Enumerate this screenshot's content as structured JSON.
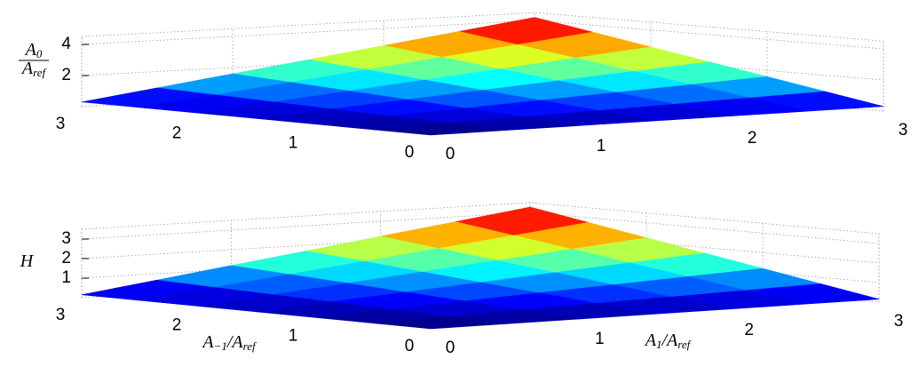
{
  "chart_data": [
    {
      "type": "surface",
      "zlabel": {
        "num": [
          {
            "t": "A"
          },
          {
            "t": "0",
            "sub": true
          }
        ],
        "den": [
          {
            "t": "A"
          },
          {
            "t": "ref",
            "sub": true
          }
        ]
      },
      "x": [
        0,
        0.5,
        1,
        1.5,
        2,
        2.5,
        3
      ],
      "y": [
        0,
        0.5,
        1,
        1.5,
        2,
        2.5,
        3
      ],
      "z": [
        [
          0,
          0.05,
          0.1,
          0.15,
          0.2,
          0.25,
          0.3
        ],
        [
          0.05,
          0.2,
          0.35,
          0.5,
          0.65,
          0.8,
          0.95
        ],
        [
          0.1,
          0.35,
          0.6,
          0.85,
          1.1,
          1.35,
          1.6
        ],
        [
          0.15,
          0.5,
          0.85,
          1.2,
          1.55,
          1.9,
          2.25
        ],
        [
          0.2,
          0.65,
          1.1,
          1.55,
          2.0,
          2.45,
          2.9
        ],
        [
          0.25,
          0.8,
          1.35,
          1.9,
          2.45,
          3.0,
          3.55
        ],
        [
          0.3,
          0.95,
          1.6,
          2.25,
          2.9,
          3.55,
          4.2
        ]
      ],
      "xlim": [
        0,
        3
      ],
      "ylim": [
        0,
        3
      ],
      "zlim": [
        0,
        4.5
      ],
      "xticks": [
        0,
        1,
        2,
        3
      ],
      "yticks": [
        0,
        1,
        2,
        3
      ],
      "zticks": [
        2,
        4
      ],
      "grid": true,
      "colormap": "jet"
    },
    {
      "type": "surface",
      "zlabel": {
        "num": [
          {
            "t": "H"
          }
        ]
      },
      "xlabel": [
        {
          "t": "A"
        },
        {
          "t": "1",
          "sub": true
        },
        {
          "t": "/A"
        },
        {
          "t": "ref",
          "sub": true
        }
      ],
      "ylabel": [
        {
          "t": "A"
        },
        {
          "t": "−1",
          "sub": true
        },
        {
          "t": "/A"
        },
        {
          "t": "ref",
          "sub": true
        }
      ],
      "x": [
        0,
        0.5,
        1,
        1.5,
        2,
        2.5,
        3
      ],
      "y": [
        0,
        0.5,
        1,
        1.5,
        2,
        2.5,
        3
      ],
      "z": [
        [
          0,
          0.025,
          0.05,
          0.075,
          0.1,
          0.125,
          0.15
        ],
        [
          0.025,
          0.13,
          0.24,
          0.35,
          0.455,
          0.56,
          0.67
        ],
        [
          0.05,
          0.24,
          0.43,
          0.62,
          0.81,
          1.0,
          1.19
        ],
        [
          0.075,
          0.35,
          0.62,
          0.89,
          1.17,
          1.44,
          1.71
        ],
        [
          0.1,
          0.455,
          0.81,
          1.165,
          1.52,
          1.875,
          2.23
        ],
        [
          0.125,
          0.56,
          1.0,
          1.44,
          1.875,
          2.31,
          2.75
        ],
        [
          0.15,
          0.67,
          1.19,
          1.71,
          2.23,
          2.75,
          3.27
        ]
      ],
      "xlim": [
        0,
        3
      ],
      "ylim": [
        0,
        3
      ],
      "zlim": [
        0,
        3.5
      ],
      "xticks": [
        0,
        1,
        2,
        3
      ],
      "yticks": [
        0,
        1,
        2,
        3
      ],
      "zticks": [
        1,
        2,
        3
      ],
      "grid": true,
      "colormap": "jet"
    }
  ]
}
